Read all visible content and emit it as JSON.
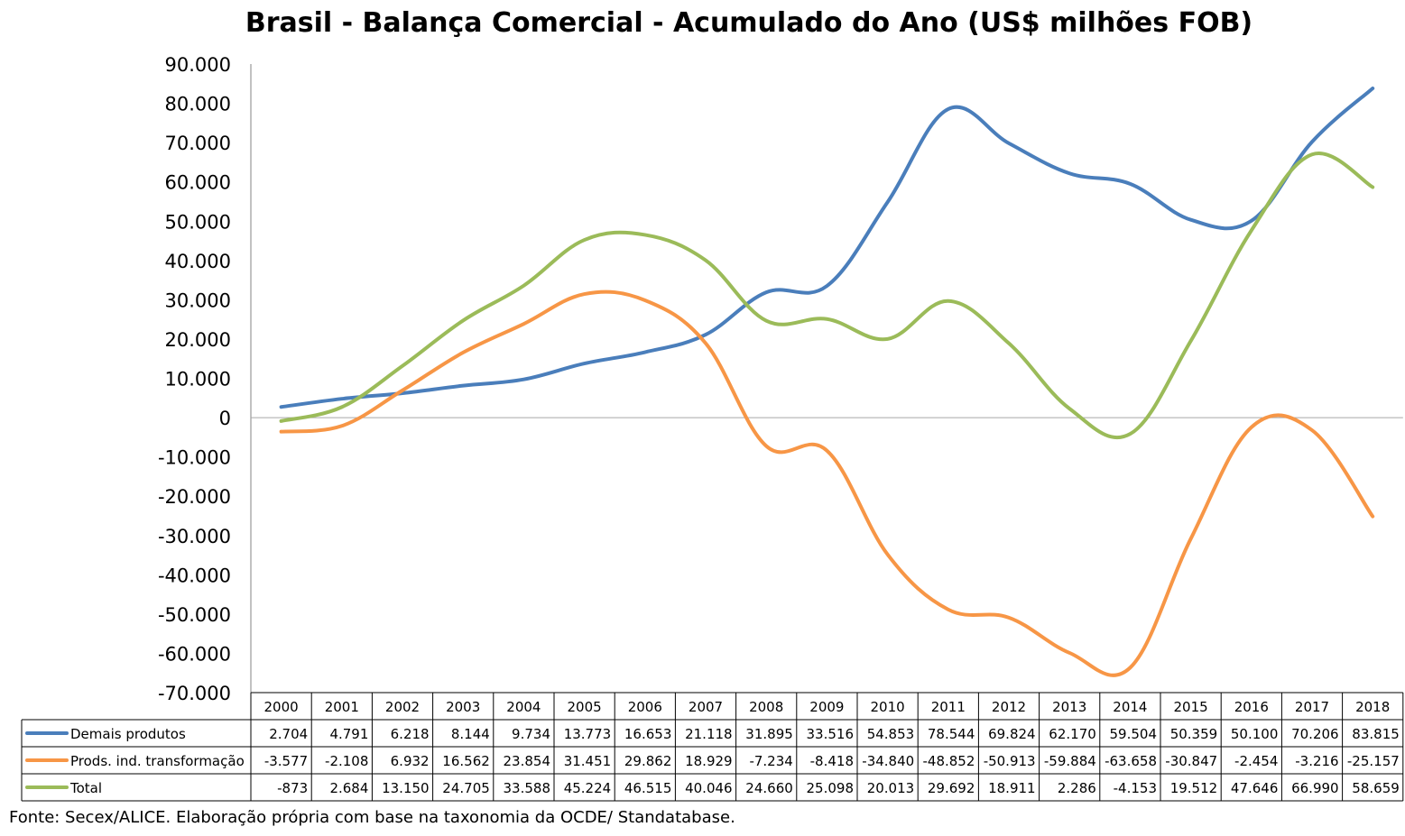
{
  "chart_data": {
    "type": "line",
    "title": "Brasil - Balança Comercial - Acumulado do Ano (US$ milhões FOB)",
    "source": "Fonte: Secex/ALICE. Elaboração própria com base na taxonomia da OCDE/ Standatabase.",
    "x": [
      "2000",
      "2001",
      "2002",
      "2003",
      "2004",
      "2005",
      "2006",
      "2007",
      "2008",
      "2009",
      "2010",
      "2011",
      "2012",
      "2013",
      "2014",
      "2015",
      "2016",
      "2017",
      "2018"
    ],
    "ylim": [
      -70000,
      90000
    ],
    "yticks": [
      90000,
      80000,
      70000,
      60000,
      50000,
      40000,
      30000,
      20000,
      10000,
      0,
      -10000,
      -20000,
      -30000,
      -40000,
      -50000,
      -60000,
      -70000
    ],
    "ytick_labels": [
      "90.000",
      "80.000",
      "70.000",
      "60.000",
      "50.000",
      "40.000",
      "30.000",
      "20.000",
      "10.000",
      "0",
      "-10.000",
      "-20.000",
      "-30.000",
      "-40.000",
      "-50.000",
      "-60.000",
      "-70.000"
    ],
    "grid": false,
    "legend": "data-table",
    "series": [
      {
        "name": "Demais produtos",
        "color": "#4a7ebb",
        "values": [
          2704,
          4791,
          6218,
          8144,
          9734,
          13773,
          16653,
          21118,
          31895,
          33516,
          54853,
          78544,
          69824,
          62170,
          59504,
          50359,
          50100,
          70206,
          83815
        ],
        "labels": [
          "2.704",
          "4.791",
          "6.218",
          "8.144",
          "9.734",
          "13.773",
          "16.653",
          "21.118",
          "31.895",
          "33.516",
          "54.853",
          "78.544",
          "69.824",
          "62.170",
          "59.504",
          "50.359",
          "50.100",
          "70.206",
          "83.815"
        ]
      },
      {
        "name": "Prods. ind. transformação",
        "color": "#f79646",
        "values": [
          -3577,
          -2108,
          6932,
          16562,
          23854,
          31451,
          29862,
          18929,
          -7234,
          -8418,
          -34840,
          -48852,
          -50913,
          -59884,
          -63658,
          -30847,
          -2454,
          -3216,
          -25157
        ],
        "labels": [
          "-3.577",
          "-2.108",
          "6.932",
          "16.562",
          "23.854",
          "31.451",
          "29.862",
          "18.929",
          "-7.234",
          "-8.418",
          "-34.840",
          "-48.852",
          "-50.913",
          "-59.884",
          "-63.658",
          "-30.847",
          "-2.454",
          "-3.216",
          "-25.157"
        ]
      },
      {
        "name": "Total",
        "color": "#9bbb59",
        "values": [
          -873,
          2684,
          13150,
          24705,
          33588,
          45224,
          46515,
          40046,
          24660,
          25098,
          20013,
          29692,
          18911,
          2286,
          -4153,
          19512,
          47646,
          66990,
          58659
        ],
        "labels": [
          "-873",
          "2.684",
          "13.150",
          "24.705",
          "33.588",
          "45.224",
          "46.515",
          "40.046",
          "24.660",
          "25.098",
          "20.013",
          "29.692",
          "18.911",
          "2.286",
          "-4.153",
          "19.512",
          "47.646",
          "66.990",
          "58.659"
        ]
      }
    ]
  }
}
